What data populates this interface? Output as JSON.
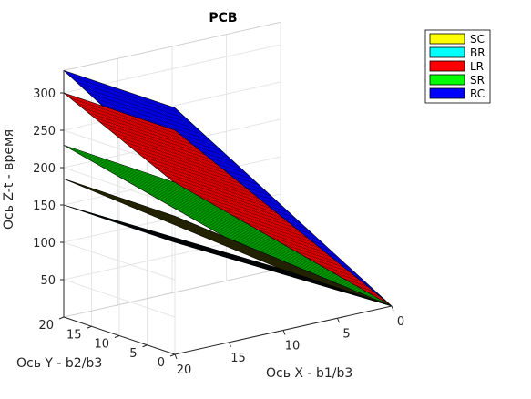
{
  "chart_data": {
    "type": "surface3d",
    "title": "PCB",
    "xlabel": "Ось X - b1/b3",
    "ylabel": "Ось Y - b2/b3",
    "zlabel": "Ось Z-t - время",
    "xlim": [
      0,
      20
    ],
    "ylim": [
      0,
      20
    ],
    "zlim": [
      0,
      300
    ],
    "x_ticks": [
      "0",
      "5",
      "10",
      "15",
      "20"
    ],
    "y_ticks": [
      "0",
      "5",
      "10",
      "15",
      "20"
    ],
    "z_ticks": [
      "50",
      "100",
      "150",
      "200",
      "250",
      "300"
    ],
    "grid": true,
    "legend_position": "top-right",
    "series": [
      {
        "name": "SC",
        "color": "#ffff00",
        "z_at_x0_y0": 0,
        "z_at_x0_y20": 0,
        "z_at_x20_y0": 185,
        "z_at_x20_y20": 185
      },
      {
        "name": "BR",
        "color": "#00ffff",
        "z_at_x0_y0": 0,
        "z_at_x0_y20": 0,
        "z_at_x20_y0": 150,
        "z_at_x20_y20": 150
      },
      {
        "name": "LR",
        "color": "#ff0000",
        "z_at_x0_y0": 0,
        "z_at_x0_y20": 0,
        "z_at_x20_y0": 300,
        "z_at_x20_y20": 300
      },
      {
        "name": "SR",
        "color": "#00ff00",
        "z_at_x0_y0": 0,
        "z_at_x0_y20": 0,
        "z_at_x20_y0": 230,
        "z_at_x20_y20": 230
      },
      {
        "name": "RC",
        "color": "#0000ff",
        "z_at_x0_y0": 0,
        "z_at_x0_y20": 0,
        "z_at_x20_y0": 330,
        "z_at_x20_y20": 330
      }
    ]
  }
}
